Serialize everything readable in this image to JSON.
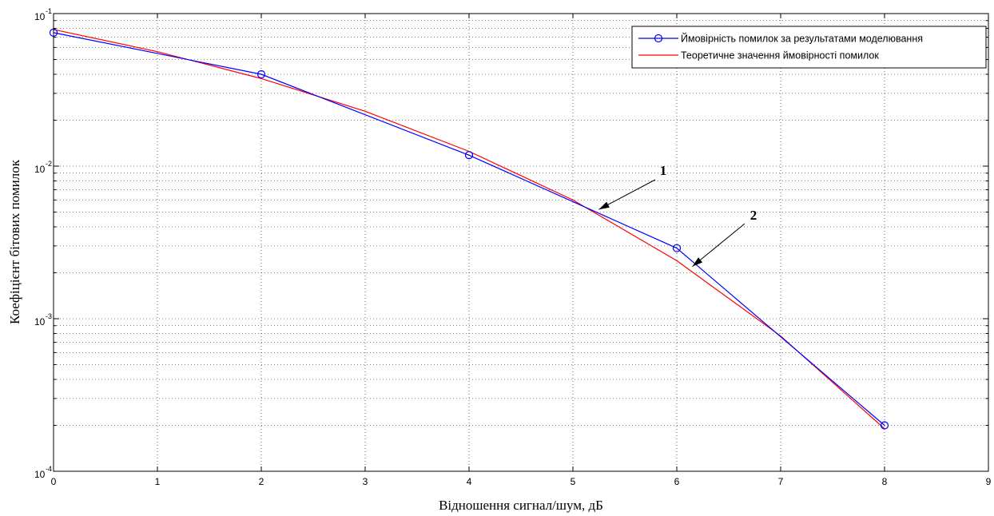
{
  "chart_data": {
    "type": "line",
    "title": "",
    "xlabel": "Відношення сигнал/шум, дБ",
    "ylabel": "Коефіцієнт бітових помилок",
    "xlim": [
      0,
      9
    ],
    "ylim": [
      0.0001,
      0.1
    ],
    "y_scale": "log",
    "grid": true,
    "grid_style": "dotted",
    "legend_position": "top-right",
    "x_ticks": [
      "0",
      "1",
      "2",
      "3",
      "4",
      "5",
      "6",
      "7",
      "8",
      "9"
    ],
    "y_ticks": [
      {
        "value": 0.1,
        "base": "10",
        "exp": "-1"
      },
      {
        "value": 0.01,
        "base": "10",
        "exp": "-2"
      },
      {
        "value": 0.001,
        "base": "10",
        "exp": "-3"
      },
      {
        "value": 0.0001,
        "base": "10",
        "exp": "-4"
      }
    ],
    "series": [
      {
        "name": "Ймовірність помилок за результатами моделювання",
        "color": "#0000ff",
        "marker": "circle",
        "x": [
          0,
          2,
          4,
          6,
          8
        ],
        "y": [
          0.075,
          0.04,
          0.0118,
          0.0029,
          0.0002
        ]
      },
      {
        "name": "Теоретичне значення ймовірності помилок",
        "color": "#ff0000",
        "marker": "none",
        "x": [
          0,
          1,
          2,
          3,
          4,
          5,
          6,
          7,
          8
        ],
        "y": [
          0.0786,
          0.0563,
          0.0375,
          0.0229,
          0.0125,
          0.006,
          0.0024,
          0.00077,
          0.00019
        ]
      }
    ],
    "annotations": [
      {
        "text": "1",
        "target": {
          "x": 5.25,
          "y": 0.0052
        }
      },
      {
        "text": "2",
        "target": {
          "x": 6.15,
          "y": 0.0022
        }
      }
    ]
  }
}
